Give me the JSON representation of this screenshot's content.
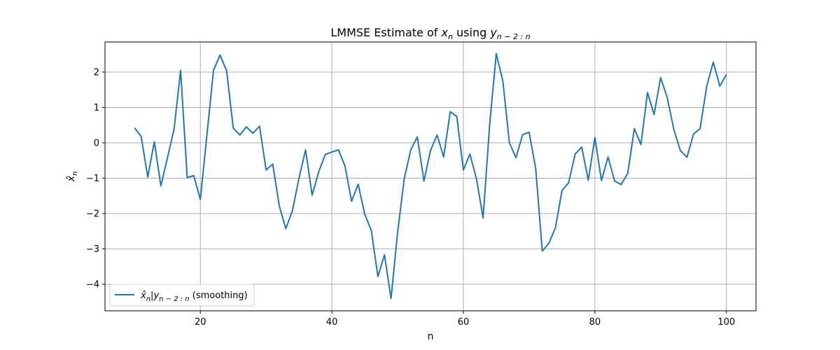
{
  "chart_data": {
    "type": "line",
    "title": "LMMSE Estimate of x_n using y_{n-2:n}",
    "title_parts": {
      "pre": "LMMSE Estimate of ",
      "x": "x",
      "x_sub": "n",
      "mid": " using ",
      "y": "y",
      "y_sub": "n − 2 : n"
    },
    "xlabel": "n",
    "ylabel": "x̂_n",
    "ylabel_parts": {
      "main": "x̂",
      "sub": "n"
    },
    "xlim": [
      5.5,
      104.5
    ],
    "ylim": [
      -4.75,
      2.85
    ],
    "xticks": [
      20,
      40,
      60,
      80,
      100
    ],
    "yticks": [
      -4,
      -3,
      -2,
      -1,
      0,
      1,
      2
    ],
    "ytick_labels": [
      "−4",
      "−3",
      "−2",
      "−1",
      "0",
      "1",
      "2"
    ],
    "grid": true,
    "legend_position": "lower-left",
    "series": [
      {
        "name": "x̂_n|y_{n-2:n} (smoothing)",
        "legend_parts": {
          "x": "x̂",
          "x_sub": "n",
          "bar": "|",
          "y": "y",
          "y_sub": "n − 2 : n",
          "suffix": " (smoothing)"
        },
        "color": "#1f77b4",
        "x": [
          10,
          11,
          12,
          13,
          14,
          15,
          16,
          17,
          18,
          19,
          20,
          21,
          22,
          23,
          24,
          25,
          26,
          27,
          28,
          29,
          30,
          31,
          32,
          33,
          34,
          35,
          36,
          37,
          38,
          39,
          40,
          41,
          42,
          43,
          44,
          45,
          46,
          47,
          48,
          49,
          50,
          51,
          52,
          53,
          54,
          55,
          56,
          57,
          58,
          59,
          60,
          61,
          62,
          63,
          64,
          65,
          66,
          67,
          68,
          69,
          70,
          71,
          72,
          73,
          74,
          75,
          76,
          77,
          78,
          79,
          80,
          81,
          82,
          83,
          84,
          85,
          86,
          87,
          88,
          89,
          90,
          91,
          92,
          93,
          94,
          95,
          96,
          97,
          98,
          99,
          100
        ],
        "y": [
          0.42,
          0.18,
          -0.97,
          0.03,
          -1.22,
          -0.42,
          0.38,
          2.05,
          -0.98,
          -0.93,
          -1.6,
          0.22,
          2.05,
          2.48,
          2.03,
          0.42,
          0.22,
          0.45,
          0.27,
          0.47,
          -0.77,
          -0.6,
          -1.78,
          -2.43,
          -1.92,
          -1.0,
          -0.2,
          -1.48,
          -0.82,
          -0.33,
          -0.26,
          -0.2,
          -0.66,
          -1.65,
          -1.17,
          -2.02,
          -2.48,
          -3.78,
          -3.17,
          -4.4,
          -2.53,
          -1.02,
          -0.2,
          0.17,
          -1.08,
          -0.22,
          0.22,
          -0.4,
          0.88,
          0.74,
          -0.77,
          -0.32,
          -1.03,
          -2.13,
          0.52,
          2.52,
          1.75,
          0.0,
          -0.42,
          0.23,
          0.3,
          -0.73,
          -3.06,
          -2.84,
          -2.4,
          -1.35,
          -1.13,
          -0.32,
          -0.12,
          -1.06,
          0.15,
          -1.07,
          -0.4,
          -1.08,
          -1.18,
          -0.86,
          0.4,
          -0.05,
          1.42,
          0.8,
          1.84,
          1.28,
          0.38,
          -0.22,
          -0.41,
          0.25,
          0.4,
          1.6,
          2.28,
          1.6,
          1.93
        ]
      }
    ]
  }
}
